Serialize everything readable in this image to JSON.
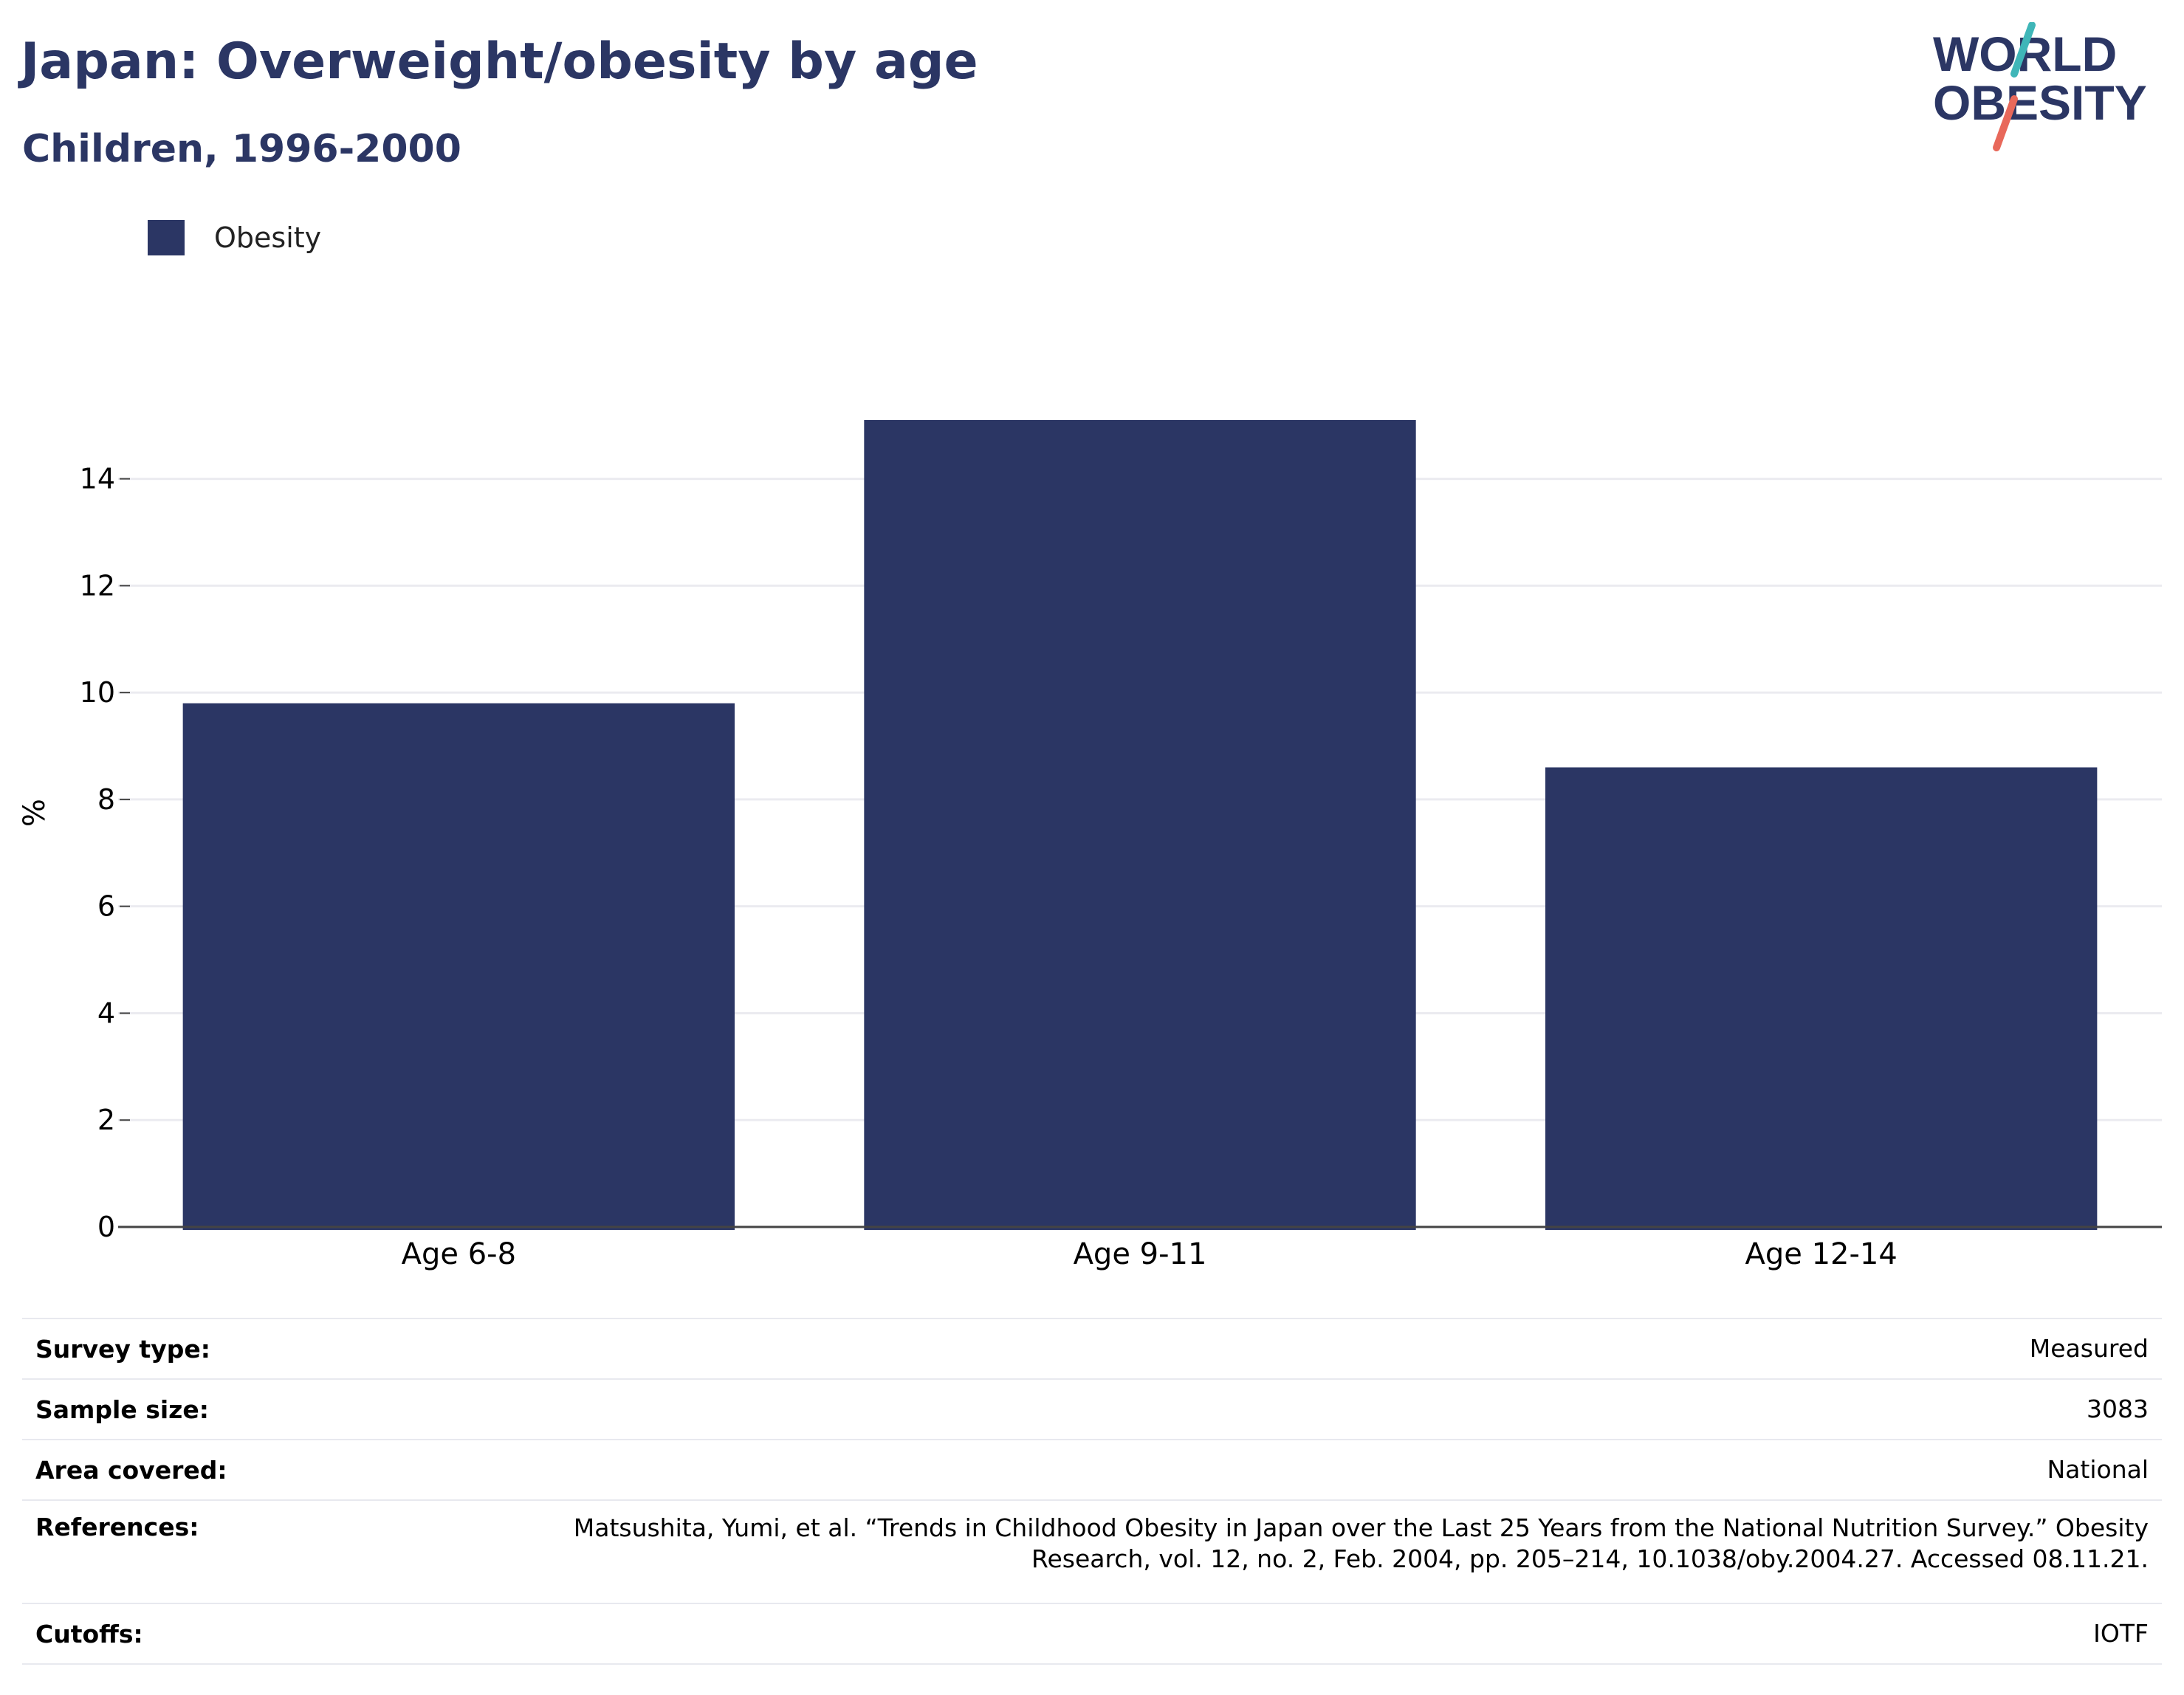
{
  "header": {
    "title": "Japan: Overweight/obesity by age",
    "subtitle": "Children, 1996-2000"
  },
  "logo": {
    "line1": "WORLD",
    "line2": "OBESITY",
    "colors": {
      "text": "#2b3664",
      "slash_top": "#3fb6b8",
      "slash_bottom": "#e8685a"
    }
  },
  "colors": {
    "bar": "#2b3664",
    "grid": "#ebebf0",
    "axis": "#444444"
  },
  "chart_data": {
    "type": "bar",
    "categories": [
      "Age 6-8",
      "Age 9-11",
      "Age 12-14"
    ],
    "series": [
      {
        "name": "Obesity",
        "values": [
          9.8,
          15.1,
          8.6
        ]
      }
    ],
    "ylabel": "%",
    "xlabel": "",
    "ylim": [
      0,
      15.5
    ],
    "yticks": [
      0,
      2,
      4,
      6,
      8,
      10,
      12,
      14
    ],
    "grid": true,
    "legend_position": "top-left"
  },
  "info": [
    {
      "label": "Survey type:",
      "value": "Measured"
    },
    {
      "label": "Sample size:",
      "value": "3083"
    },
    {
      "label": "Area covered:",
      "value": "National"
    },
    {
      "label": "References:",
      "value": "Matsushita, Yumi, et al. “Trends in Childhood Obesity in Japan over the Last 25 Years from the National Nutrition Survey.” Obesity Research, vol. 12, no. 2, Feb. 2004, pp. 205–214, 10.1038/oby.2004.27. Accessed 08.11.21."
    },
    {
      "label": "Cutoffs:",
      "value": "IOTF"
    }
  ]
}
